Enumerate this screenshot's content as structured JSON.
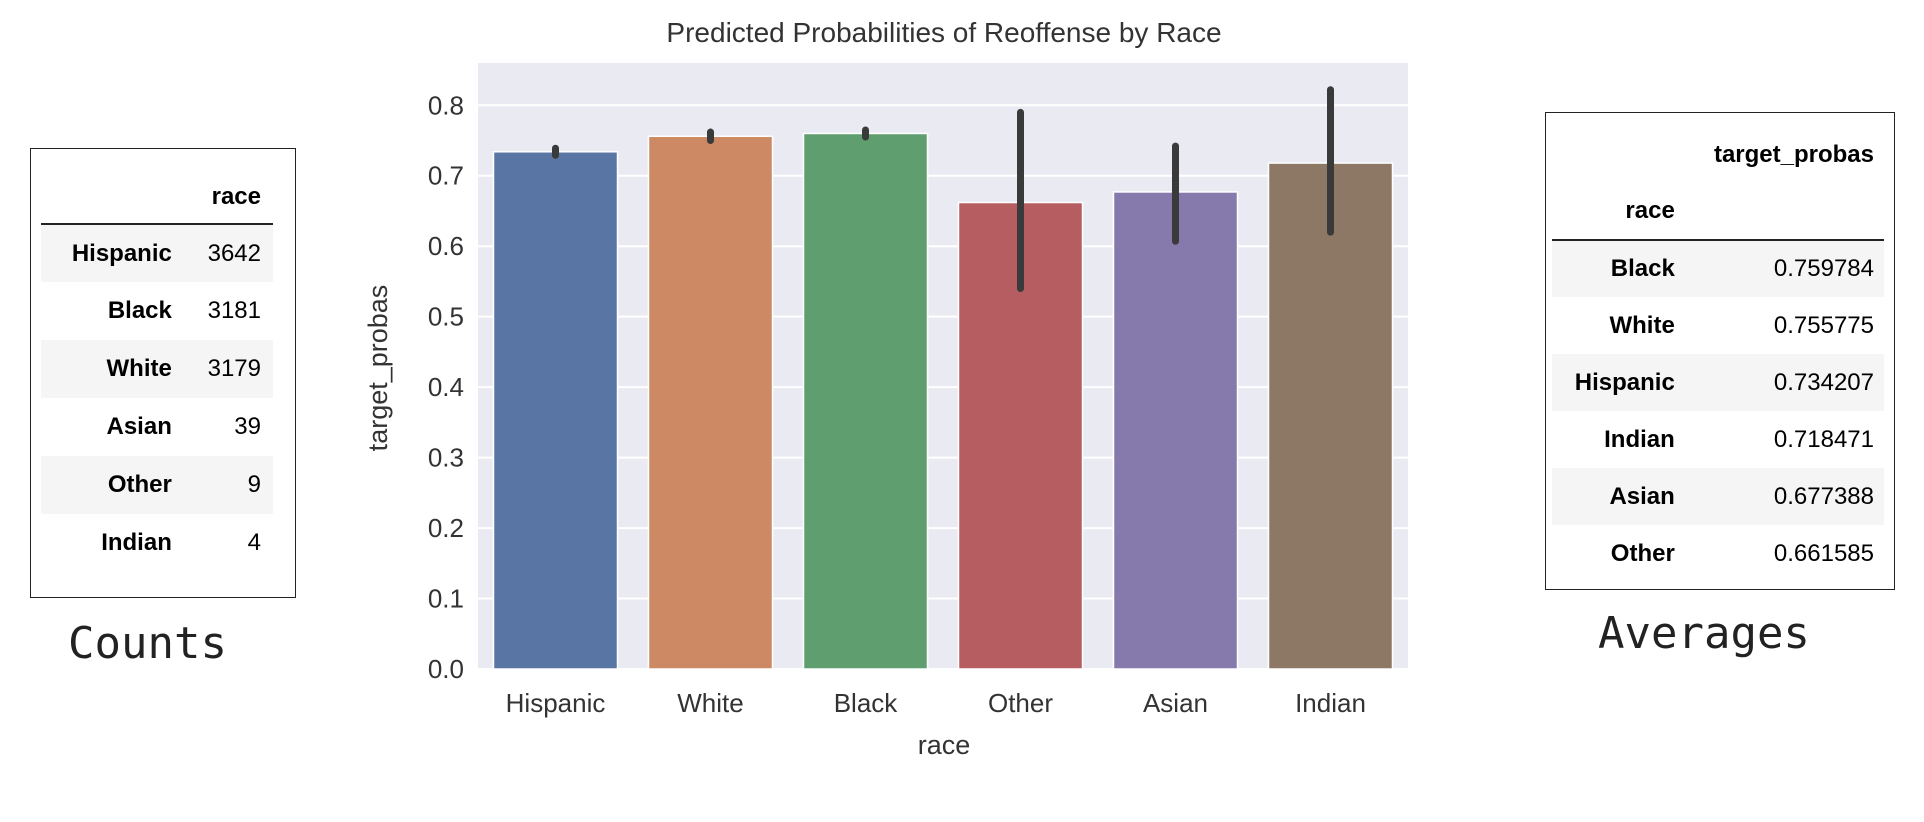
{
  "counts_table": {
    "header": "race",
    "rows": [
      {
        "race": "Hispanic",
        "count": "3642"
      },
      {
        "race": "Black",
        "count": "3181"
      },
      {
        "race": "White",
        "count": "3179"
      },
      {
        "race": "Asian",
        "count": "39"
      },
      {
        "race": "Other",
        "count": "9"
      },
      {
        "race": "Indian",
        "count": "4"
      }
    ],
    "caption": "Counts"
  },
  "averages_table": {
    "column_header": "target_probas",
    "index_header": "race",
    "rows": [
      {
        "race": "Black",
        "value": "0.759784"
      },
      {
        "race": "White",
        "value": "0.755775"
      },
      {
        "race": "Hispanic",
        "value": "0.734207"
      },
      {
        "race": "Indian",
        "value": "0.718471"
      },
      {
        "race": "Asian",
        "value": "0.677388"
      },
      {
        "race": "Other",
        "value": "0.661585"
      }
    ],
    "caption": "Averages"
  },
  "chart_data": {
    "type": "bar",
    "title": "Predicted Probabilities of Reoffense by Race",
    "xlabel": "race",
    "ylabel": "target_probas",
    "categories": [
      "Hispanic",
      "White",
      "Black",
      "Other",
      "Asian",
      "Indian"
    ],
    "values": [
      0.734,
      0.756,
      0.76,
      0.662,
      0.677,
      0.718
    ],
    "error_low": [
      0.729,
      0.75,
      0.755,
      0.54,
      0.607,
      0.62
    ],
    "error_high": [
      0.739,
      0.762,
      0.765,
      0.79,
      0.742,
      0.822
    ],
    "colors": [
      "#5875a4",
      "#cc8963",
      "#5f9e6e",
      "#b55d60",
      "#857aab",
      "#8d7866"
    ],
    "error_color": "#3a3a3a",
    "background_color": "#eaeaf2",
    "ylim": [
      0,
      0.86
    ],
    "yticks": [
      "0.0",
      "0.1",
      "0.2",
      "0.3",
      "0.4",
      "0.5",
      "0.6",
      "0.7",
      "0.8"
    ],
    "grid": true
  }
}
